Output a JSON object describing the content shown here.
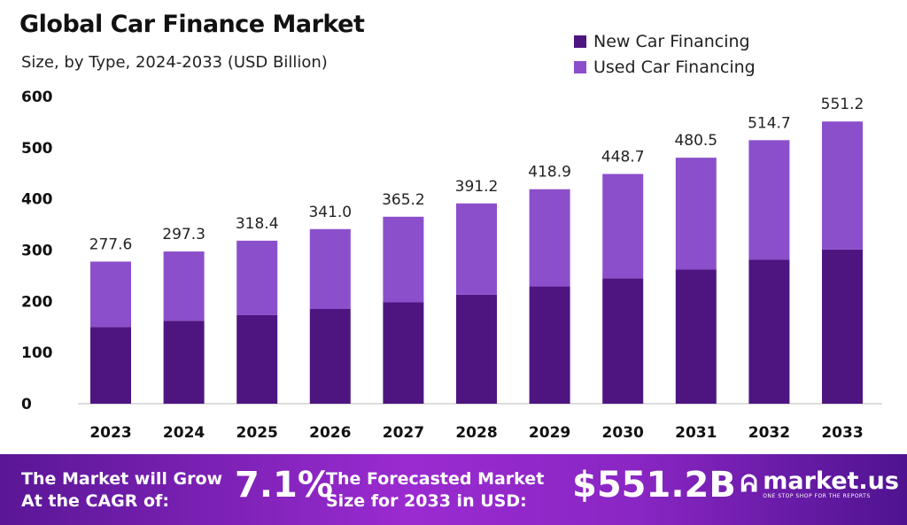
{
  "chart_data": {
    "type": "bar",
    "stacked": true,
    "title": "Global Car Finance Market",
    "subtitle": "Size, by Type, 2024-2033 (USD Billion)",
    "categories": [
      "2023",
      "2024",
      "2025",
      "2026",
      "2027",
      "2028",
      "2029",
      "2030",
      "2031",
      "2032",
      "2033"
    ],
    "series": [
      {
        "name": "New Car Financing",
        "color": "#4e1580",
        "values": [
          150,
          162,
          173,
          185,
          198,
          213,
          229,
          245,
          262,
          281,
          301
        ]
      },
      {
        "name": "Used Car Financing",
        "color": "#8b4fcb",
        "values": [
          127.6,
          135.3,
          145.4,
          156.0,
          167.2,
          178.2,
          189.9,
          203.7,
          218.5,
          233.7,
          250.2
        ]
      }
    ],
    "totals": [
      "277.6",
      "297.3",
      "318.4",
      "341.0",
      "365.2",
      "391.2",
      "418.9",
      "448.7",
      "480.5",
      "514.7",
      "551.2"
    ],
    "ylim": [
      0,
      600
    ],
    "yticks": [
      "0",
      "100",
      "200",
      "300",
      "400",
      "500",
      "600"
    ],
    "legend_position": "top-right",
    "grid": false
  },
  "footer": {
    "cagr_label_1": "The Market will Grow",
    "cagr_label_2": "At the CAGR of:",
    "cagr_value": "7.1%",
    "forecast_label_1": "The Forecasted Market",
    "forecast_label_2": "Size for 2033 in USD:",
    "forecast_value": "$551.2B",
    "brand": "market.us",
    "tagline": "ONE STOP SHOP FOR THE REPORTS"
  }
}
